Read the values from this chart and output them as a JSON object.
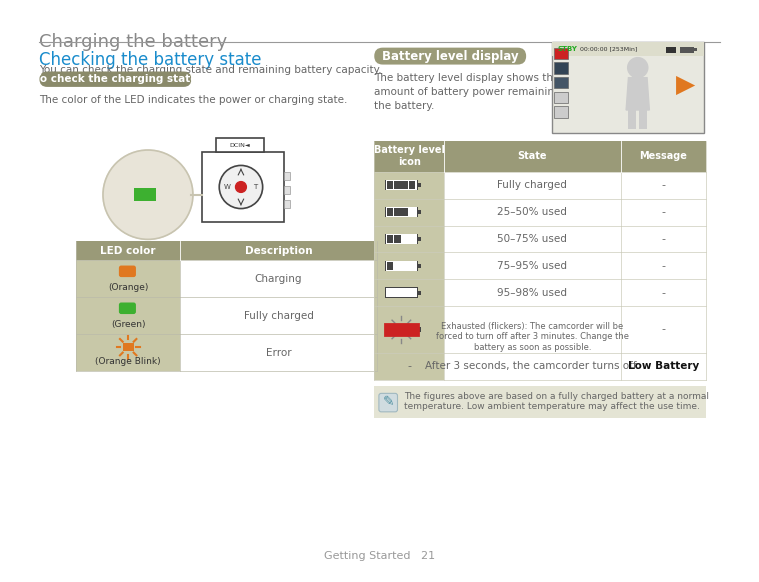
{
  "page_title": "Charging the battery",
  "section1_title": "Checking the battery state",
  "section1_body": "You can check the charging state and remaining battery capacity.",
  "subsection1_label": "To check the charging state",
  "subsection1_body": "The color of the LED indicates the power or charging state.",
  "led_table_headers": [
    "LED color",
    "Description"
  ],
  "led_table_rows": [
    {
      "icon_color": "#E07820",
      "icon_label": "(Orange)",
      "description": "Charging"
    },
    {
      "icon_color": "#3DB030",
      "icon_label": "(Green)",
      "description": "Fully charged"
    },
    {
      "icon_color": "#E07820",
      "icon_label": "(Orange Blink)",
      "description": "Error",
      "blink": true
    }
  ],
  "section2_label": "Battery level display",
  "section2_body": "The battery level display shows the\namount of battery power remaining in\nthe battery.",
  "battery_table_headers": [
    "Battery level\nicon",
    "State",
    "Message"
  ],
  "battery_table_rows": [
    {
      "state": "Fully charged",
      "message": "-"
    },
    {
      "state": "25–50% used",
      "message": "-"
    },
    {
      "state": "50–75% used",
      "message": "-"
    },
    {
      "state": "75–95% used",
      "message": "-"
    },
    {
      "state": "95–98% used",
      "message": "-"
    },
    {
      "state": "Exhausted (flickers): The camcorder will be\nforced to turn off after 3 minutes. Change the\nbattery as soon as possible.",
      "message": "-"
    },
    {
      "state": "After 3 seconds, the camcorder turns off.",
      "message": "Low Battery"
    }
  ],
  "note_text": "The figures above are based on a fully charged battery at a normal\ntemperature. Low ambient temperature may affect the use time.",
  "footer_text": "Getting Started   21",
  "bg_color": "#ffffff",
  "section_title_color": "#1a8ccc",
  "body_text_color": "#666666",
  "table_header_color": "#9a9a78",
  "table_row1_color": "#c8c8a8",
  "subsection_label_bg": "#8a8a6a",
  "title_text_color": "#888888",
  "note_bg": "#e4e4d4"
}
